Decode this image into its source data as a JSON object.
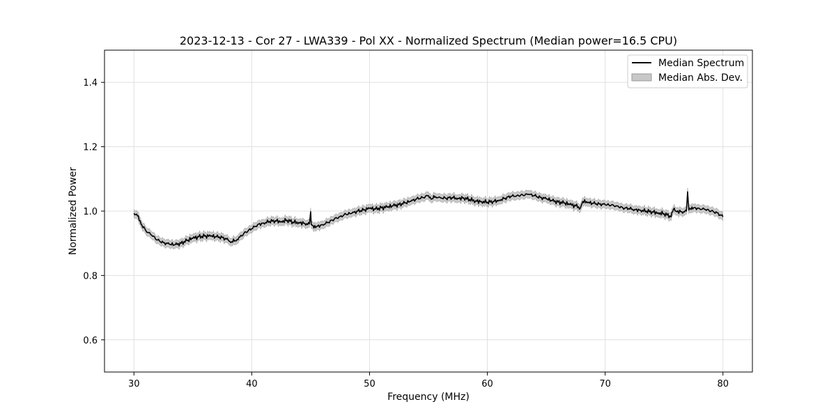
{
  "chart_data": {
    "type": "line",
    "title": "2023-12-13 - Cor 27 - LWA339 - Pol XX - Normalized Spectrum (Median power=16.5 CPU)",
    "xlabel": "Frequency (MHz)",
    "ylabel": "Normalized Power",
    "xlim": [
      27.5,
      82.5
    ],
    "ylim": [
      0.5,
      1.5
    ],
    "xticks": [
      30,
      40,
      50,
      60,
      70,
      80
    ],
    "xtick_labels": [
      "30",
      "40",
      "50",
      "60",
      "70",
      "80"
    ],
    "yticks": [
      0.6,
      0.8,
      1.0,
      1.2,
      1.4
    ],
    "ytick_labels": [
      "0.6",
      "0.8",
      "1.0",
      "1.2",
      "1.4"
    ],
    "grid": true,
    "legend": {
      "position": "top-right",
      "entries": [
        "Median Spectrum",
        "Median Abs. Dev."
      ]
    },
    "colors": {
      "line": "#000000",
      "band": "#c8c8c8",
      "band_edge": "#999999",
      "grid": "#e0e0e0"
    },
    "band_halfwidth": 0.012,
    "series": [
      {
        "name": "Median Spectrum",
        "x": [
          30.0,
          30.3,
          30.6,
          31.0,
          31.5,
          32.0,
          32.5,
          33.0,
          33.5,
          34.0,
          34.5,
          35.0,
          35.5,
          36.0,
          36.5,
          37.0,
          37.5,
          38.0,
          38.3,
          38.6,
          39.0,
          39.5,
          40.0,
          40.5,
          41.0,
          41.5,
          42.0,
          42.5,
          43.0,
          43.5,
          44.0,
          44.5,
          44.9,
          45.0,
          45.05,
          45.2,
          45.5,
          46.0,
          46.5,
          47.0,
          47.5,
          48.0,
          48.5,
          49.0,
          49.5,
          50.0,
          50.5,
          51.0,
          51.5,
          52.0,
          52.5,
          53.0,
          53.5,
          54.0,
          54.5,
          55.0,
          55.3,
          55.6,
          56.0,
          56.5,
          57.0,
          57.5,
          58.0,
          58.5,
          59.0,
          59.5,
          60.0,
          60.5,
          61.0,
          61.5,
          62.0,
          62.5,
          63.0,
          63.5,
          64.0,
          64.5,
          65.0,
          65.5,
          66.0,
          66.5,
          67.0,
          67.5,
          67.9,
          68.1,
          68.5,
          69.0,
          69.5,
          70.0,
          70.5,
          71.0,
          71.5,
          72.0,
          72.5,
          73.0,
          73.5,
          74.0,
          74.5,
          75.0,
          75.5,
          75.6,
          75.8,
          76.0,
          76.5,
          76.9,
          77.0,
          77.1,
          77.3,
          77.5,
          78.0,
          78.5,
          79.0,
          79.5,
          80.0
        ],
        "values": [
          0.993,
          0.985,
          0.96,
          0.94,
          0.925,
          0.91,
          0.902,
          0.897,
          0.895,
          0.9,
          0.908,
          0.915,
          0.92,
          0.922,
          0.922,
          0.92,
          0.918,
          0.91,
          0.905,
          0.908,
          0.92,
          0.935,
          0.945,
          0.958,
          0.963,
          0.968,
          0.97,
          0.968,
          0.972,
          0.966,
          0.965,
          0.962,
          0.96,
          0.998,
          0.958,
          0.955,
          0.952,
          0.958,
          0.965,
          0.975,
          0.983,
          0.99,
          0.993,
          1.0,
          1.003,
          1.008,
          1.006,
          1.01,
          1.012,
          1.016,
          1.02,
          1.025,
          1.03,
          1.038,
          1.042,
          1.048,
          1.038,
          1.045,
          1.042,
          1.04,
          1.042,
          1.04,
          1.041,
          1.036,
          1.032,
          1.03,
          1.028,
          1.03,
          1.034,
          1.04,
          1.046,
          1.048,
          1.05,
          1.052,
          1.048,
          1.042,
          1.038,
          1.032,
          1.028,
          1.025,
          1.02,
          1.016,
          1.01,
          1.03,
          1.026,
          1.024,
          1.022,
          1.02,
          1.018,
          1.016,
          1.01,
          1.008,
          1.005,
          1.003,
          1.0,
          0.998,
          0.995,
          0.992,
          0.985,
          0.982,
          1.005,
          1.0,
          0.998,
          1.0,
          1.06,
          1.003,
          1.005,
          1.01,
          1.008,
          1.005,
          1.0,
          0.995,
          0.982
        ]
      },
      {
        "name": "Median Abs. Dev.",
        "kind": "band"
      }
    ]
  }
}
